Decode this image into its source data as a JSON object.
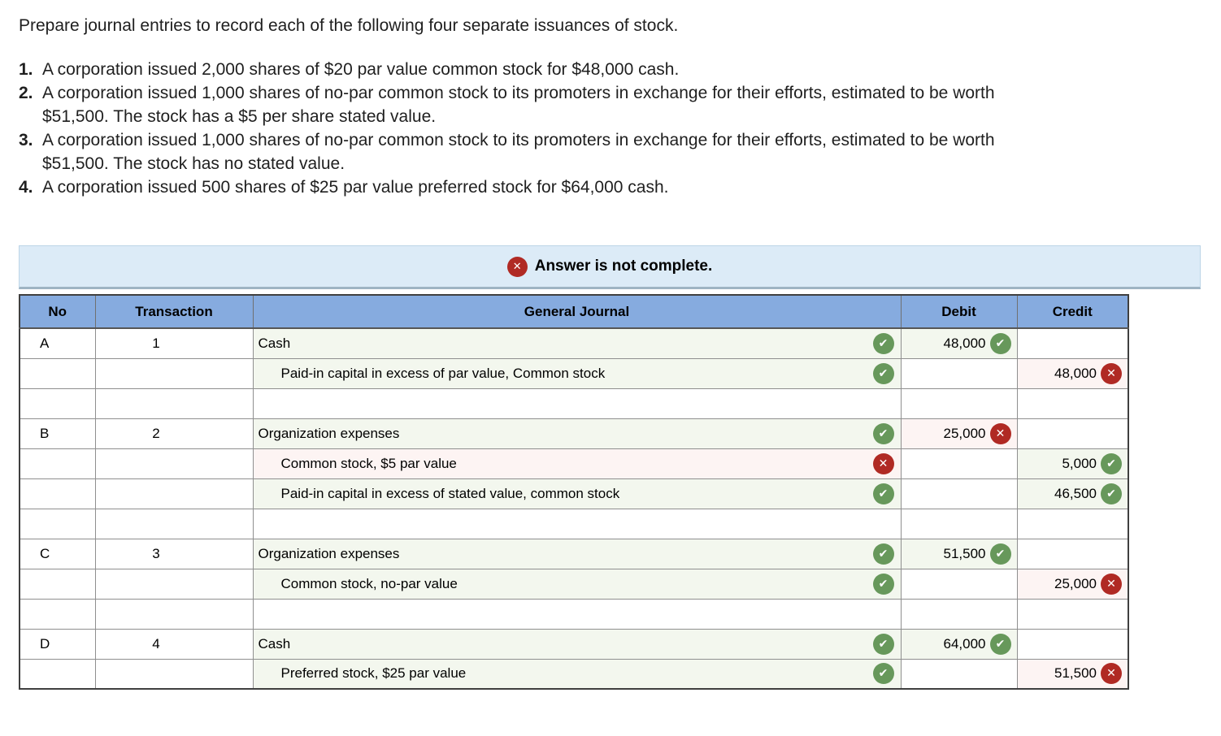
{
  "question": {
    "intro": "Prepare journal entries to record each of the following four separate issuances of stock.",
    "items": [
      {
        "num": "1.",
        "text": "A corporation issued 2,000 shares of $20 par value common stock for $48,000 cash."
      },
      {
        "num": "2.",
        "text": "A corporation issued 1,000 shares of no-par common stock to its promoters in exchange for their efforts, estimated to be worth\n$51,500. The stock has a $5 per share stated value."
      },
      {
        "num": "3.",
        "text": "A corporation issued 1,000 shares of no-par common stock to its promoters in exchange for their efforts, estimated to be worth\n$51,500. The stock has no stated value."
      },
      {
        "num": "4.",
        "text": "A corporation issued 500 shares of $25 par value preferred stock for $64,000 cash."
      }
    ]
  },
  "banner": {
    "text": "Answer is not complete.",
    "icon": "x-circle"
  },
  "table": {
    "headers": {
      "no": "No",
      "transaction": "Transaction",
      "journal": "General Journal",
      "debit": "Debit",
      "credit": "Credit"
    },
    "rows": [
      {
        "type": "entry",
        "no": "A",
        "transaction": "1",
        "journal": "Cash",
        "indent": false,
        "journal_status": "check",
        "debit": "48,000",
        "debit_status": "check",
        "credit": "",
        "credit_status": ""
      },
      {
        "type": "entry",
        "no": "",
        "transaction": "",
        "journal": "Paid-in capital in excess of par value, Common stock",
        "indent": true,
        "journal_status": "check",
        "debit": "",
        "debit_status": "",
        "credit": "48,000",
        "credit_status": "x"
      },
      {
        "type": "spacer"
      },
      {
        "type": "entry",
        "no": "B",
        "transaction": "2",
        "journal": "Organization expenses",
        "indent": false,
        "journal_status": "check",
        "debit": "25,000",
        "debit_status": "x",
        "credit": "",
        "credit_status": ""
      },
      {
        "type": "entry",
        "no": "",
        "transaction": "",
        "journal": "Common stock, $5 par value",
        "indent": true,
        "journal_status": "x",
        "debit": "",
        "debit_status": "",
        "credit": "5,000",
        "credit_status": "check"
      },
      {
        "type": "entry",
        "no": "",
        "transaction": "",
        "journal": "Paid-in capital in excess of stated value, common stock",
        "indent": true,
        "journal_status": "check",
        "debit": "",
        "debit_status": "",
        "credit": "46,500",
        "credit_status": "check"
      },
      {
        "type": "spacer"
      },
      {
        "type": "entry",
        "no": "C",
        "transaction": "3",
        "journal": "Organization expenses",
        "indent": false,
        "journal_status": "check",
        "debit": "51,500",
        "debit_status": "check",
        "credit": "",
        "credit_status": ""
      },
      {
        "type": "entry",
        "no": "",
        "transaction": "",
        "journal": "Common stock, no-par value",
        "indent": true,
        "journal_status": "check",
        "debit": "",
        "debit_status": "",
        "credit": "25,000",
        "credit_status": "x"
      },
      {
        "type": "spacer"
      },
      {
        "type": "entry",
        "no": "D",
        "transaction": "4",
        "journal": "Cash",
        "indent": false,
        "journal_status": "check",
        "debit": "64,000",
        "debit_status": "check",
        "credit": "",
        "credit_status": ""
      },
      {
        "type": "entry",
        "no": "",
        "transaction": "",
        "journal": "Preferred stock, $25 par value",
        "indent": true,
        "journal_status": "check",
        "debit": "",
        "debit_status": "",
        "credit": "51,500",
        "credit_status": "x"
      }
    ]
  },
  "colors": {
    "header_blue": "#86abdf",
    "banner_blue": "#dcebf7",
    "correct_green_icon": "#67985b",
    "wrong_red_icon": "#b02a24",
    "correct_cell_bg": "#f3f7ee",
    "wrong_cell_bg": "#fdf4f3"
  }
}
